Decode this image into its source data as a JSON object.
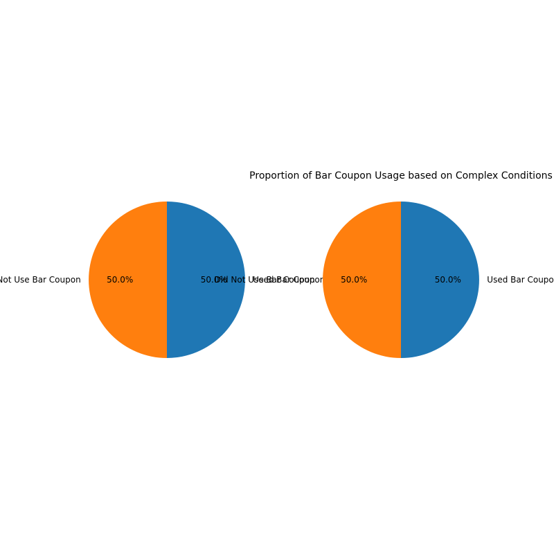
{
  "chart_data": [
    {
      "type": "pie",
      "title": "",
      "start_angle_deg": 90,
      "direction": "clockwise",
      "slices": [
        {
          "label": "Used Bar Coupon",
          "value": 50,
          "pct_label": "50.0%",
          "color": "#1f77b4"
        },
        {
          "label": "Did Not Use Bar Coupon",
          "value": 50,
          "pct_label": "50.0%",
          "color": "#ff7f0e"
        }
      ]
    },
    {
      "type": "pie",
      "title": "Proportion of Bar Coupon Usage based on Complex Conditions",
      "start_angle_deg": 90,
      "direction": "clockwise",
      "slices": [
        {
          "label": "Used Bar Coupon",
          "value": 50,
          "pct_label": "50.0%",
          "color": "#1f77b4"
        },
        {
          "label": "Did Not Use Bar Coupon",
          "value": 50,
          "pct_label": "50.0%",
          "color": "#ff7f0e"
        }
      ]
    }
  ]
}
